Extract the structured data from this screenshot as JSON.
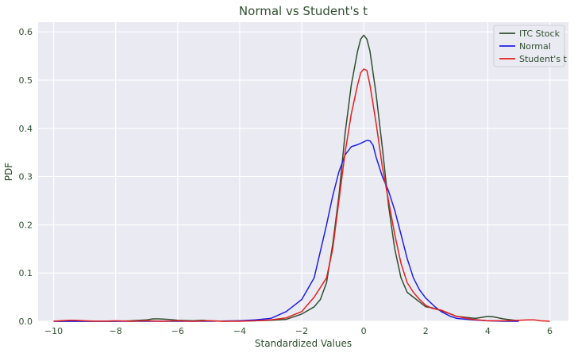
{
  "chart_data": {
    "type": "line",
    "title": "Normal vs Student's t",
    "xlabel": "Standardized Values",
    "ylabel": "PDF",
    "xlim": [
      -10.5,
      6.6
    ],
    "ylim": [
      0,
      0.62
    ],
    "xticks": [
      -10,
      -8,
      -6,
      -4,
      -2,
      0,
      2,
      4,
      6
    ],
    "xtick_labels": [
      "−10",
      "−8",
      "−6",
      "−4",
      "−2",
      "0",
      "2",
      "4",
      "6"
    ],
    "yticks": [
      0.0,
      0.1,
      0.2,
      0.3,
      0.4,
      0.5,
      0.6
    ],
    "ytick_labels": [
      "0.0",
      "0.1",
      "0.2",
      "0.3",
      "0.4",
      "0.5",
      "0.6"
    ],
    "grid": true,
    "legend_position": "top-right",
    "background_color": "#eaeaf2",
    "series": [
      {
        "name": "ITC Stock",
        "color": "#2f4f2f",
        "x": [
          -10,
          -9.5,
          -9,
          -8,
          -7.5,
          -7,
          -6.8,
          -6.6,
          -6.3,
          -6,
          -5.5,
          -5.2,
          -5,
          -4.5,
          -4,
          -3.5,
          -3,
          -2.5,
          -2,
          -1.6,
          -1.4,
          -1.2,
          -1,
          -0.8,
          -0.6,
          -0.4,
          -0.2,
          -0.1,
          0,
          0.1,
          0.2,
          0.4,
          0.6,
          0.8,
          1,
          1.2,
          1.4,
          1.6,
          1.8,
          2,
          2.2,
          2.5,
          3,
          3.3,
          3.6,
          4,
          4.2,
          4.5,
          5
        ],
        "y": [
          0.0,
          0.0,
          0.0,
          0.0,
          0.001,
          0.003,
          0.005,
          0.005,
          0.004,
          0.002,
          0.001,
          0.002,
          0.001,
          0.0,
          0.001,
          0.001,
          0.002,
          0.004,
          0.015,
          0.03,
          0.045,
          0.08,
          0.16,
          0.26,
          0.39,
          0.49,
          0.56,
          0.585,
          0.593,
          0.585,
          0.56,
          0.47,
          0.36,
          0.24,
          0.15,
          0.09,
          0.06,
          0.05,
          0.04,
          0.03,
          0.028,
          0.022,
          0.01,
          0.008,
          0.006,
          0.01,
          0.009,
          0.005,
          0.001
        ]
      },
      {
        "name": "Normal",
        "color": "#1f1fe6",
        "x": [
          -10,
          -8,
          -6,
          -5,
          -4,
          -3.5,
          -3,
          -2.5,
          -2,
          -1.6,
          -1.2,
          -1,
          -0.8,
          -0.6,
          -0.4,
          -0.2,
          0,
          0.1,
          0.2,
          0.3,
          0.4,
          0.6,
          0.8,
          1,
          1.2,
          1.4,
          1.6,
          1.8,
          2,
          2.3,
          2.5,
          2.8,
          3,
          3.5,
          4,
          4.5,
          5
        ],
        "y": [
          0.0,
          0.0,
          0.0,
          0.0,
          0.001,
          0.003,
          0.006,
          0.02,
          0.045,
          0.09,
          0.2,
          0.26,
          0.31,
          0.345,
          0.362,
          0.366,
          0.372,
          0.375,
          0.374,
          0.365,
          0.34,
          0.3,
          0.27,
          0.23,
          0.18,
          0.13,
          0.09,
          0.065,
          0.048,
          0.03,
          0.02,
          0.01,
          0.006,
          0.003,
          0.001,
          0.0,
          0.0
        ]
      },
      {
        "name": "Student's t",
        "color": "#e61f1f",
        "x": [
          -10,
          -9.8,
          -9.5,
          -9.3,
          -9,
          -8.5,
          -8,
          -7.5,
          -7,
          -6.5,
          -6,
          -5.5,
          -5,
          -4.5,
          -4,
          -3.5,
          -3,
          -2.5,
          -2,
          -1.6,
          -1.2,
          -1,
          -0.8,
          -0.6,
          -0.4,
          -0.2,
          -0.1,
          0,
          0.1,
          0.2,
          0.4,
          0.6,
          0.8,
          1,
          1.2,
          1.4,
          1.6,
          1.8,
          2,
          2.2,
          2.5,
          3,
          3.5,
          4,
          4.5,
          5,
          5.3,
          5.5,
          5.7,
          6
        ],
        "y": [
          0.0,
          0.001,
          0.002,
          0.002,
          0.001,
          0.0,
          0.001,
          0.0,
          0.001,
          0.0,
          0.001,
          0.0,
          0.001,
          0.0,
          0.0,
          0.001,
          0.003,
          0.007,
          0.02,
          0.05,
          0.09,
          0.15,
          0.25,
          0.35,
          0.43,
          0.49,
          0.515,
          0.523,
          0.52,
          0.49,
          0.41,
          0.32,
          0.25,
          0.18,
          0.12,
          0.08,
          0.06,
          0.045,
          0.033,
          0.027,
          0.023,
          0.01,
          0.004,
          0.001,
          0.001,
          0.002,
          0.003,
          0.003,
          0.001,
          0.0
        ]
      }
    ]
  }
}
